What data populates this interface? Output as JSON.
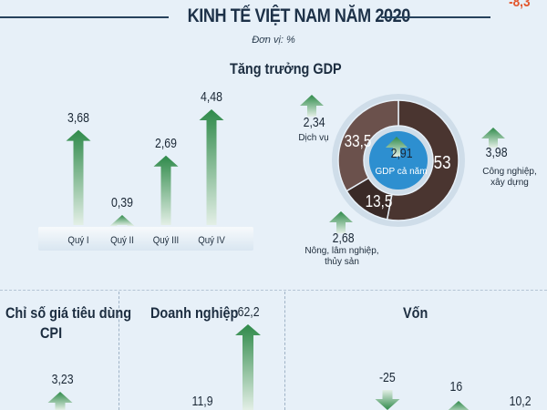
{
  "header": {
    "title": "KINH TẾ VIỆT NAM NĂM 2020",
    "corner_value": "-8,3",
    "unit": "Đơn vị: %"
  },
  "gdp_section": {
    "title": "Tăng trưởng GDP",
    "quarters": [
      {
        "label": "Quý I",
        "value_text": "3,68",
        "value": 3.68
      },
      {
        "label": "Quý II",
        "value_text": "0,39",
        "value": 0.39
      },
      {
        "label": "Quý III",
        "value_text": "2,69",
        "value": 2.69
      },
      {
        "label": "Quý IV",
        "value_text": "4,48",
        "value": 4.48
      }
    ],
    "donut": {
      "center_value": "2,91",
      "center_label": "GDP cả năm",
      "segments": [
        {
          "value_text": "53",
          "value": 53,
          "color": "#4a3530"
        },
        {
          "value_text": "13,5",
          "value": 13.5,
          "color": "#3a2a27"
        },
        {
          "value_text": "33,5",
          "value": 33.5,
          "color": "#6b514c"
        }
      ]
    },
    "sectors": [
      {
        "label": "Dịch vụ",
        "value_text": "2,34"
      },
      {
        "label": "Công nghiệp, xây dựng",
        "label_line1": "Công nghiệp,",
        "label_line2": "xây dựng",
        "value_text": "3,98"
      },
      {
        "label": "Nông, lâm nghiệp, thủy sản",
        "label_line1": "Nông, lâm nghiệp,",
        "label_line2": "thủy sản",
        "value_text": "2,68"
      }
    ]
  },
  "bottom": {
    "cpi_title_line1": "Chỉ số giá tiêu dùng",
    "cpi_title_line2": "CPI",
    "cpi_value": "3,23",
    "business_title": "Doanh nghiệp",
    "business_values": [
      "62,2",
      "11,9"
    ],
    "capital_title": "Vốn",
    "capital_values": [
      "-25",
      "16",
      "10,2"
    ]
  },
  "colors": {
    "arrow_top": "#2f8a4a",
    "arrow_bottom": "#e3efe6",
    "negative": "#e2562d",
    "donut_ring": "#cfdde9",
    "center_circle": "#2d8fd0"
  },
  "chart_data": [
    {
      "type": "bar",
      "title": "Tăng trưởng GDP",
      "categories": [
        "Quý I",
        "Quý II",
        "Quý III",
        "Quý IV"
      ],
      "values": [
        3.68,
        0.39,
        2.69,
        4.48
      ],
      "ylim": [
        0,
        4.48
      ]
    },
    {
      "type": "pie",
      "categories": [
        "53",
        "13,5",
        "33,5"
      ],
      "values": [
        53,
        13.5,
        33.5
      ]
    }
  ]
}
